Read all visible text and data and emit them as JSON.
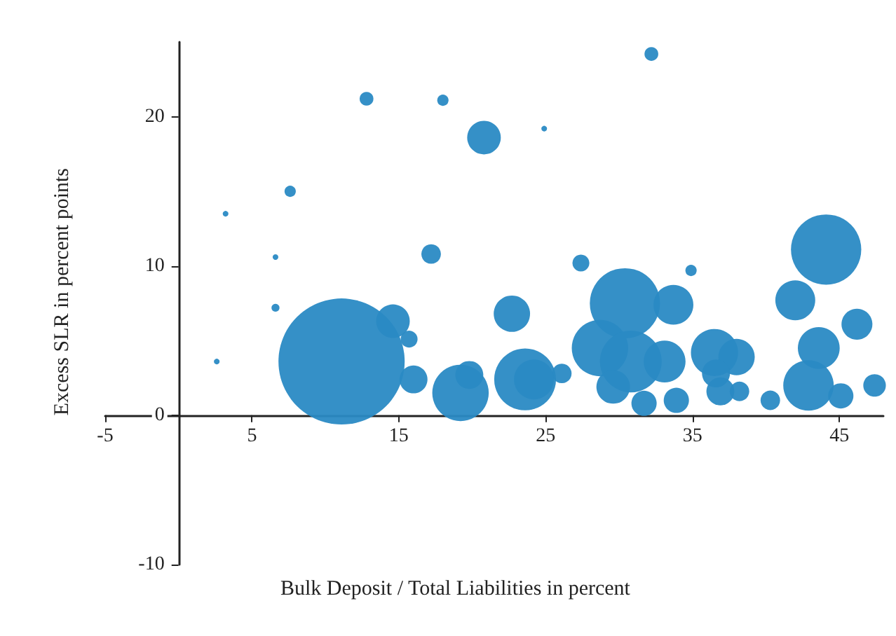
{
  "chart_data": {
    "type": "bubble",
    "xlabel": "Bulk Deposit / Total Liabilities in percent",
    "ylabel": "Excess SLR in percent points",
    "xlim": [
      -5,
      48
    ],
    "xticks": [
      -5,
      5,
      15,
      25,
      35,
      45
    ],
    "ylim": [
      -10,
      25
    ],
    "yticks": [
      -10,
      0,
      10,
      20
    ],
    "series": [
      {
        "color": "#2a8ac4",
        "x": [
          12.8,
          18.0,
          20.8,
          7.6,
          3.2,
          6.6,
          17.2,
          6.6,
          2.6,
          11.1,
          14.6,
          15.7,
          16.0,
          19.2,
          19.8,
          22.7,
          23.6,
          32.2,
          24.9,
          27.4,
          34.9,
          44.1,
          30.4,
          33.7,
          42.0,
          46.2,
          28.7,
          30.8,
          33.1,
          36.5,
          38.0,
          36.6,
          29.6,
          31.7,
          33.9,
          36.9,
          38.2,
          40.3,
          43.6,
          42.9,
          45.1,
          47.4,
          26.1,
          24.2
        ],
        "values": [
          21.2,
          21.1,
          18.6,
          15.0,
          13.5,
          10.6,
          10.8,
          7.2,
          3.6,
          3.6,
          6.3,
          5.1,
          2.4,
          1.5,
          2.7,
          6.8,
          2.4,
          24.2,
          19.2,
          10.2,
          9.7,
          11.1,
          7.5,
          7.4,
          7.7,
          6.1,
          4.5,
          3.6,
          3.6,
          4.2,
          3.9,
          2.8,
          1.9,
          0.8,
          1.0,
          1.6,
          1.6,
          1.0,
          4.5,
          2.0,
          1.3,
          2.0,
          2.8,
          2.4
        ],
        "sizes": [
          0.012,
          0.008,
          0.071,
          0.008,
          0.002,
          0.002,
          0.024,
          0.004,
          0.002,
          1,
          0.071,
          0.018,
          0.049,
          0.2,
          0.049,
          0.083,
          0.24,
          0.012,
          0.002,
          0.018,
          0.008,
          0.31,
          0.31,
          0.1,
          0.1,
          0.06,
          0.2,
          0.24,
          0.11,
          0.14,
          0.083,
          0.049,
          0.071,
          0.04,
          0.04,
          0.049,
          0.024,
          0.024,
          0.11,
          0.16,
          0.04,
          0.032,
          0.024,
          0.1
        ]
      }
    ]
  }
}
